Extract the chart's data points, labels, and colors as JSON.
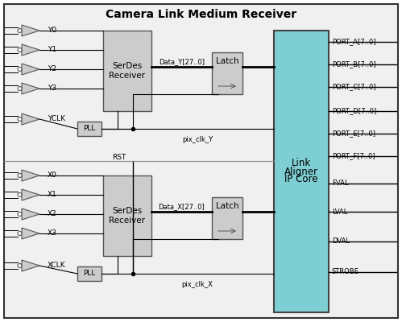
{
  "title": "Camera Link Medium Receiver",
  "title_fontsize": 11,
  "fig_bg": "#ffffff",
  "box_bg": "#cccccc",
  "box_edge": "#555555",
  "link_aligner_bg": "#7ecfd4",
  "link_aligner_edge": "#444444",
  "latch_bg": "#cccccc",
  "border_color": "#333333",
  "outer_bg": "#f0f0f0",
  "y_signals": [
    "Y0",
    "Y1",
    "Y2",
    "Y3",
    "YCLK"
  ],
  "x_signals": [
    "X0",
    "X1",
    "X2",
    "X3",
    "XCLK"
  ],
  "port_labels_top": [
    "PORT_A[7..0]",
    "PORT_B[7..0]",
    "PORT_C[7..0]",
    "PORT_D[7..0]",
    "PORT_E[7..0]",
    "PORT_F[7..0]"
  ],
  "port_labels_bot": [
    "FVAL",
    "LVAL",
    "DVAL",
    "STROBE"
  ],
  "serdes_y_label": [
    "SerDes",
    "Receiver"
  ],
  "serdes_x_label": [
    "SerDes",
    "Receiver"
  ],
  "pll_label": "PLL",
  "latch_label": "Latch",
  "link_aligner_label": [
    "Link",
    "Aligner",
    "IP Core"
  ],
  "data_y_label": "Data_Y[27..0]",
  "data_x_label": "Data_X[27..0]",
  "pix_clk_y_label": "pix_clk_Y",
  "pix_clk_x_label": "pix_clk_X",
  "rst_label": "RST",
  "fs_tiny": 6.0,
  "fs_small": 6.5,
  "fs_medium": 7.5,
  "fs_large": 9.0
}
